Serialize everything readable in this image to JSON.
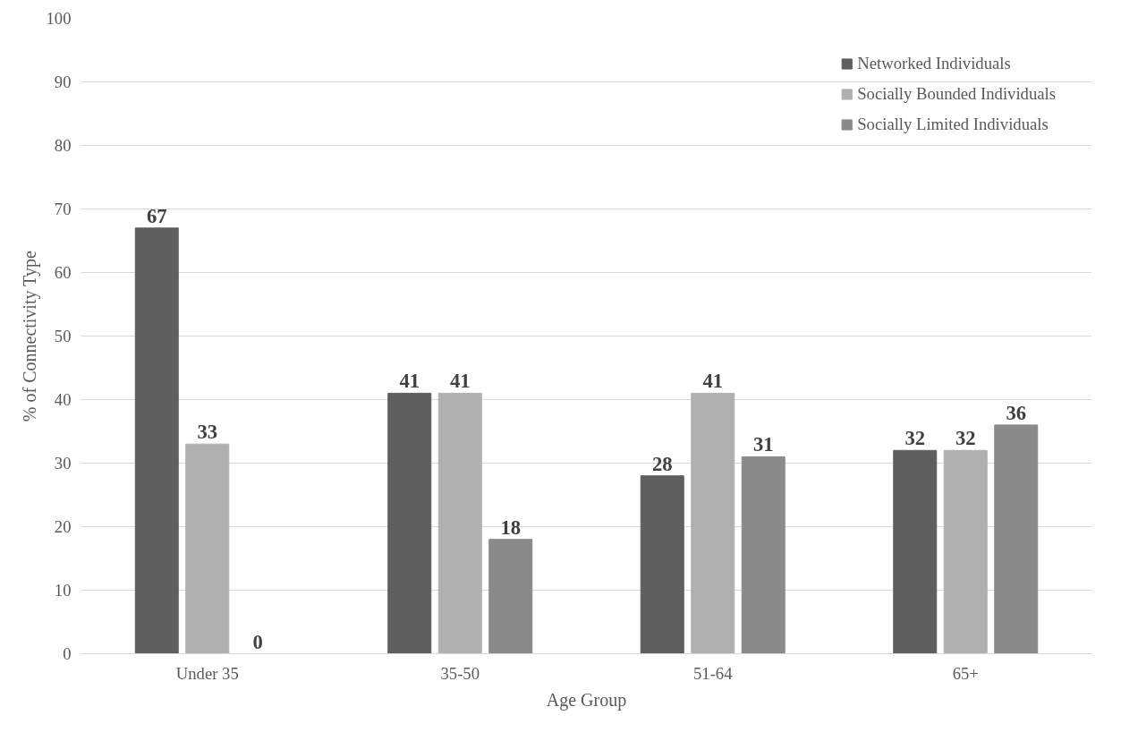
{
  "chart_data": {
    "type": "bar",
    "xlabel": "Age Group",
    "ylabel": "% of Connectivity Type",
    "categories": [
      "Under 35",
      "35-50",
      "51-64",
      "65+"
    ],
    "series": [
      {
        "name": "Networked Individuals",
        "color": "#5f5f5f",
        "values": [
          67,
          41,
          28,
          32
        ]
      },
      {
        "name": "Socially Bounded Individuals",
        "color": "#b0b0b0",
        "values": [
          33,
          41,
          41,
          32
        ]
      },
      {
        "name": "Socially Limited Individuals",
        "color": "#8a8a8a",
        "values": [
          0,
          18,
          31,
          36
        ]
      }
    ],
    "ylim": [
      0,
      100
    ],
    "yticks": [
      0,
      10,
      20,
      30,
      40,
      50,
      60,
      70,
      80,
      90,
      100
    ],
    "grid": "y",
    "legend": "top right",
    "data_labels": true
  }
}
